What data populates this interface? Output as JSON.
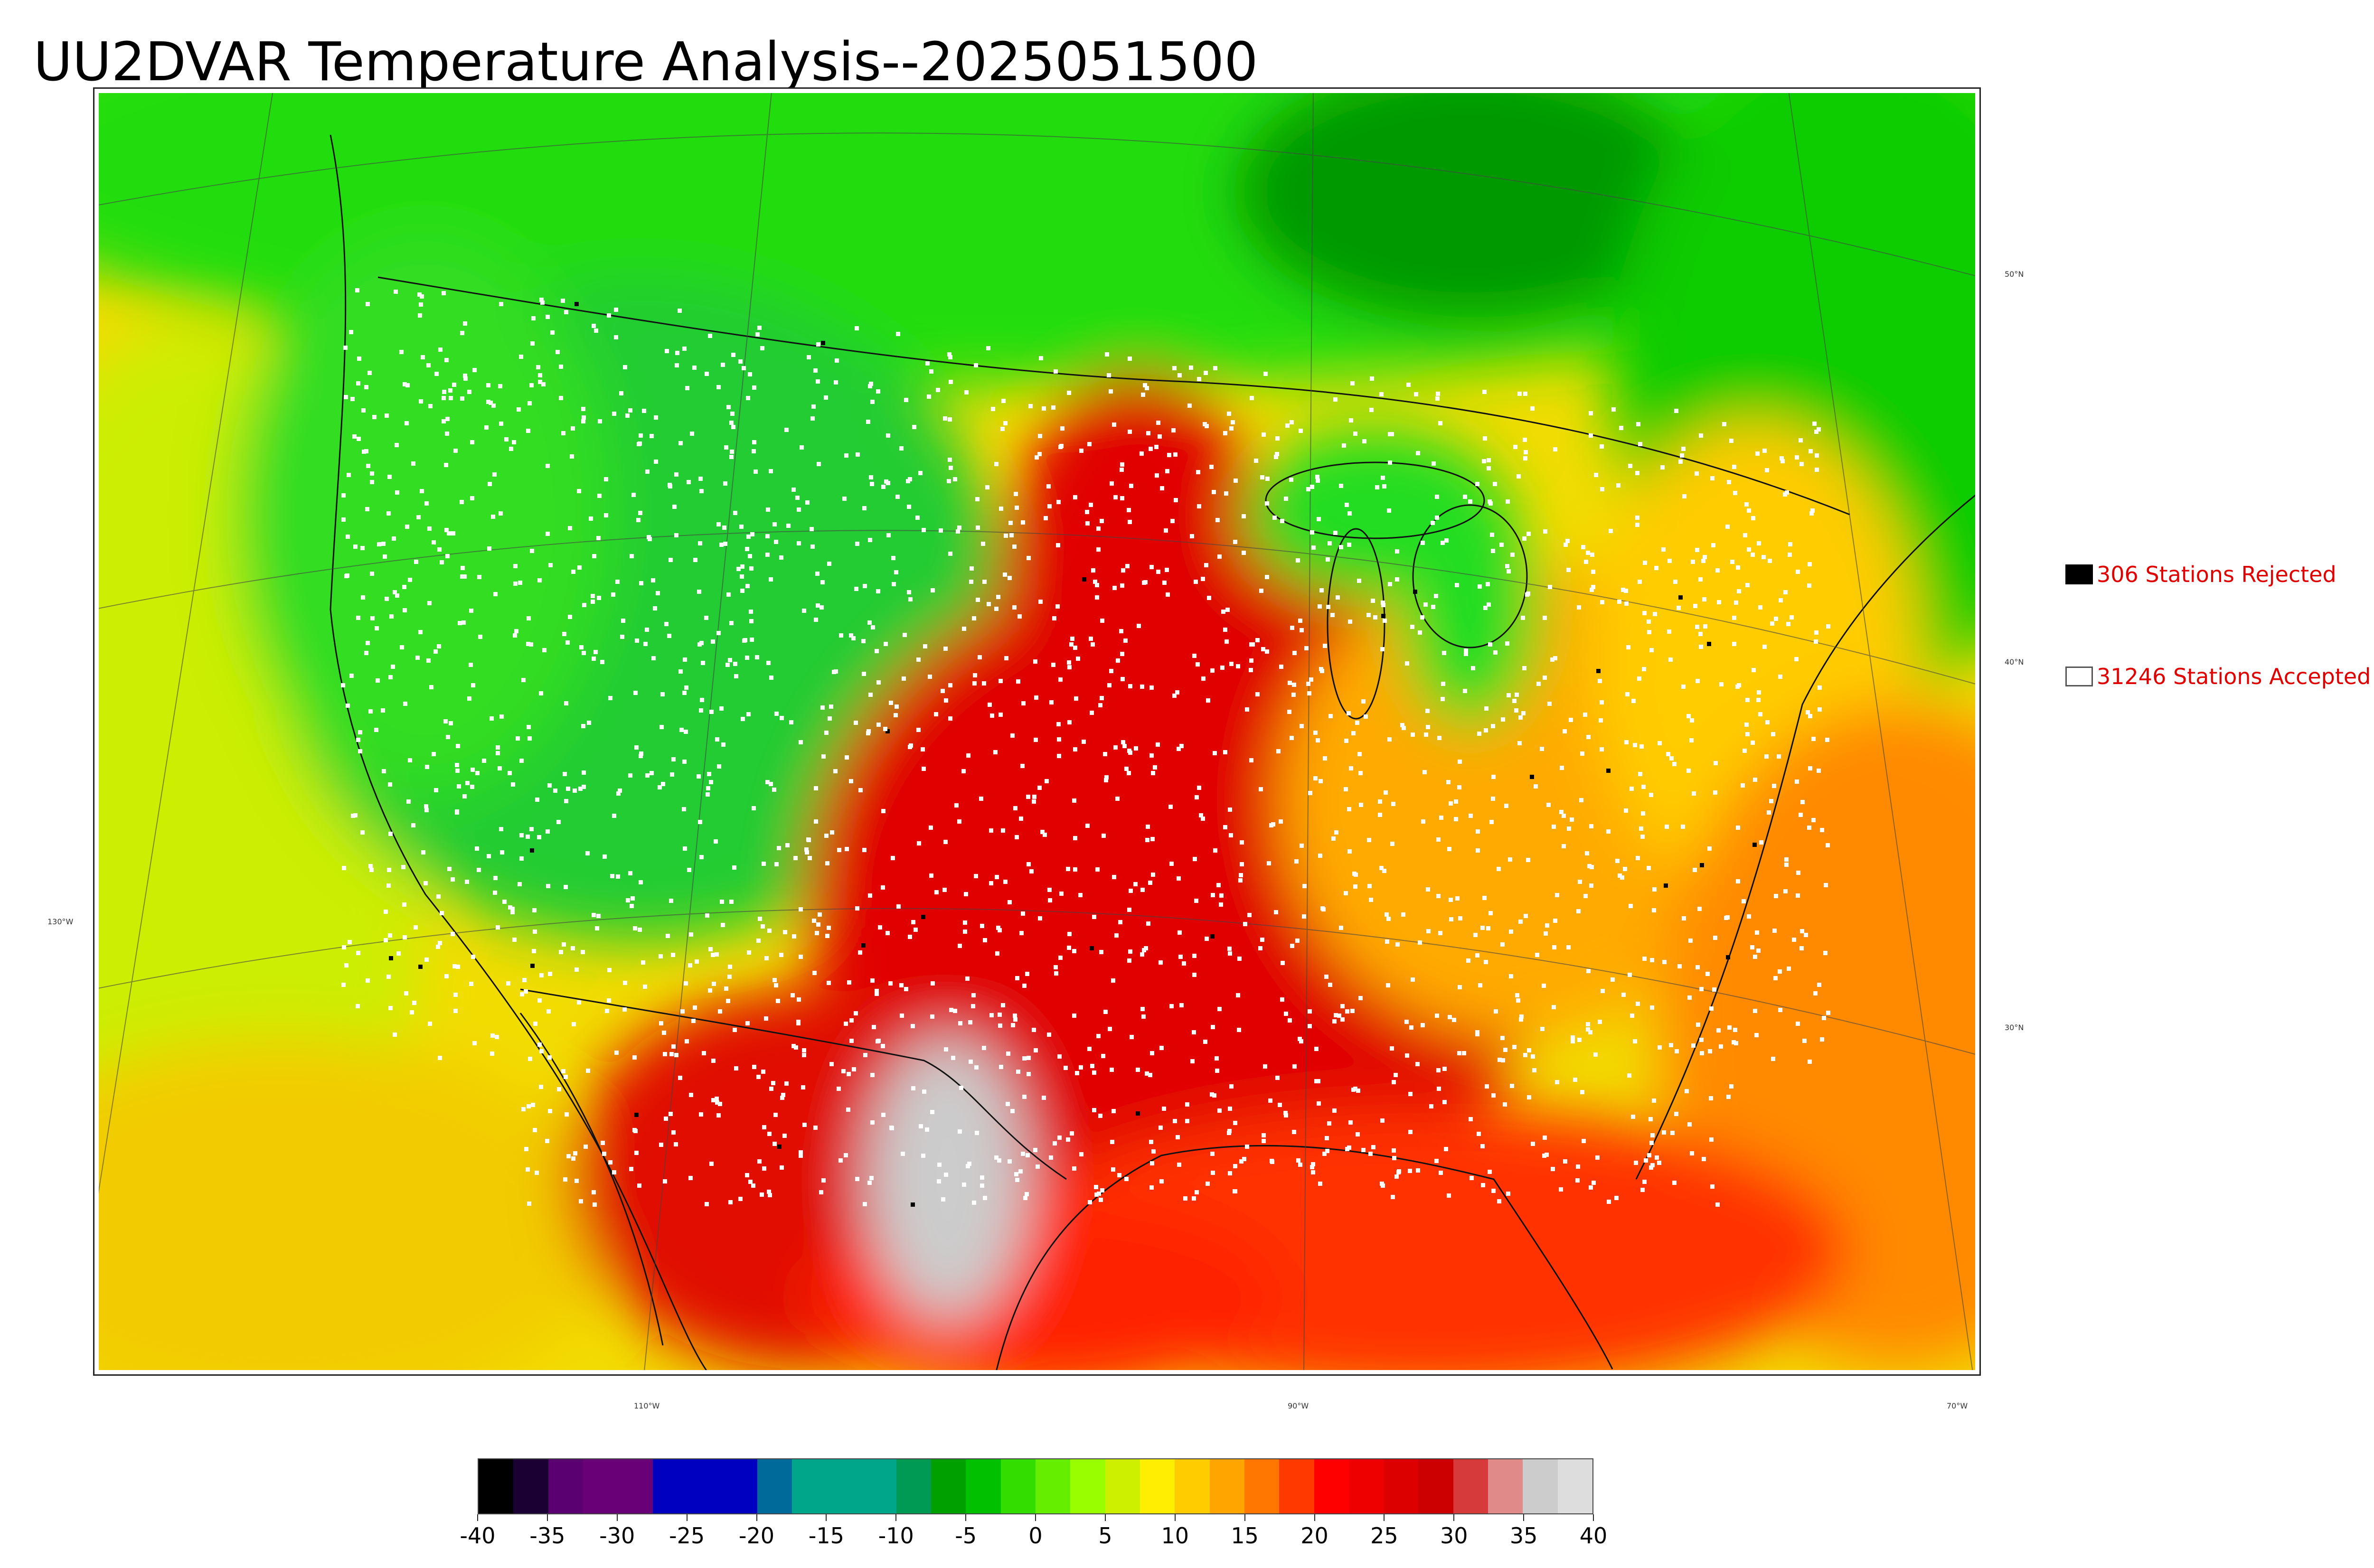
{
  "title": "UU2DVAR Temperature Analysis--2025051500",
  "map": {
    "lat_labels": [
      "50°N",
      "40°N",
      "30°N"
    ],
    "lon_labels_left": [
      "130°W"
    ],
    "lon_labels_bottom": [
      "110°W",
      "90°W",
      "70°W"
    ],
    "temperature_regions": [
      {
        "name": "canada-north",
        "color": "#1ecc1e"
      },
      {
        "name": "hudson-bay",
        "color": "#009900"
      },
      {
        "name": "pacific-ocean",
        "color": "#d8e800"
      },
      {
        "name": "rockies",
        "color": "#22cc33"
      },
      {
        "name": "great-plains-south",
        "color": "#e00000"
      },
      {
        "name": "southeast",
        "color": "#ff9a00"
      },
      {
        "name": "atlantic-ocean",
        "color": "#ff8800"
      },
      {
        "name": "gulf",
        "color": "#ff3300"
      },
      {
        "name": "mexico-plateau",
        "color": "#cccccc"
      }
    ],
    "station_dot_color": "#ffffff",
    "rejected_dot_color": "#000000"
  },
  "legend": {
    "rejected_label": "306 Stations Rejected",
    "accepted_label": "31246 Stations Accepted",
    "label_color": "#e00000"
  },
  "colorbar": {
    "ticks": [
      "-40",
      "-35",
      "-30",
      "-25",
      "-20",
      "-15",
      "-10",
      "-5",
      "0",
      "5",
      "10",
      "15",
      "20",
      "25",
      "30",
      "35",
      "40"
    ],
    "min": -40,
    "max": 40,
    "units": "",
    "colors": [
      "#000000",
      "#1a0033",
      "#5a0070",
      "#6a0078",
      "#6a0078",
      "#0000c0",
      "#0000c0",
      "#0000c0",
      "#006a9a",
      "#00a68a",
      "#00a68a",
      "#00a68a",
      "#009a55",
      "#00a000",
      "#00c000",
      "#33dd00",
      "#66ee00",
      "#99ff00",
      "#ccf000",
      "#ffee00",
      "#ffcc00",
      "#ffa500",
      "#ff7700",
      "#ff3a00",
      "#ff0000",
      "#ee0000",
      "#dd0000",
      "#cc0000",
      "#d63a3a",
      "#e08a8a",
      "#cccccc",
      "#dddddd"
    ]
  }
}
